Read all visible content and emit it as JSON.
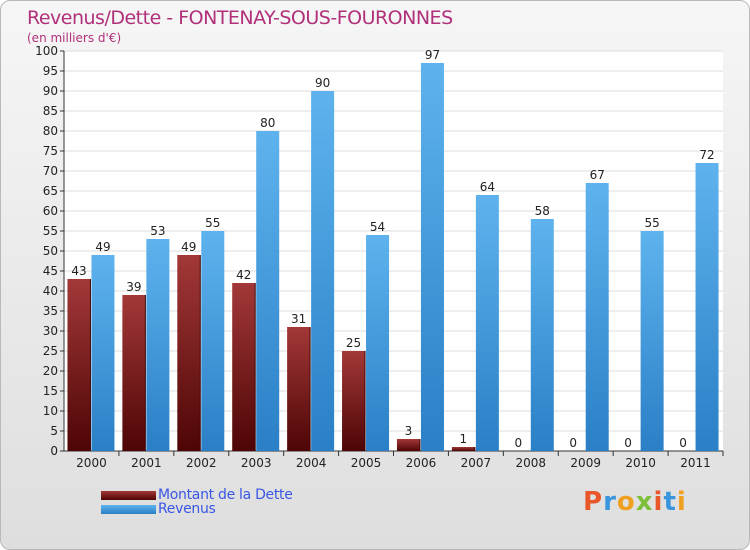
{
  "title": "Revenus/Dette - FONTENAY-SOUS-FOURONNES",
  "subtitle": "(en milliers d'€)",
  "brand": "Proxiti",
  "chart_data": {
    "type": "bar",
    "categories": [
      "2000",
      "2001",
      "2002",
      "2003",
      "2004",
      "2005",
      "2006",
      "2007",
      "2008",
      "2009",
      "2010",
      "2011"
    ],
    "series": [
      {
        "name": "Montant de la Dette",
        "color": "#7a1a1a",
        "values": [
          43,
          39,
          49,
          42,
          31,
          25,
          3,
          1,
          0,
          0,
          0,
          0
        ]
      },
      {
        "name": "Revenus",
        "color": "#3a96dc",
        "values": [
          49,
          53,
          55,
          80,
          90,
          54,
          97,
          64,
          58,
          67,
          55,
          72
        ]
      }
    ],
    "ylim": [
      0,
      100
    ],
    "ytick_step": 5,
    "grid": true,
    "legend": "bottom-left"
  }
}
